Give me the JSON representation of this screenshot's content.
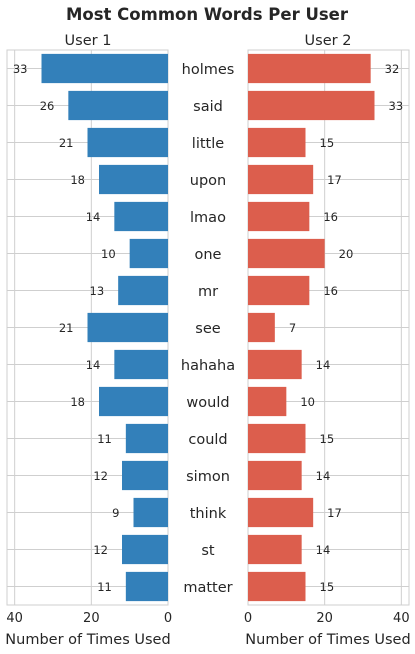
{
  "chart_data": {
    "type": "bar",
    "title": "Most Common Words Per User",
    "categories": [
      "holmes",
      "said",
      "little",
      "upon",
      "lmao",
      "one",
      "mr",
      "see",
      "hahaha",
      "would",
      "could",
      "simon",
      "think",
      "st",
      "matter"
    ],
    "series": [
      {
        "name": "User 1",
        "values": [
          33,
          26,
          21,
          18,
          14,
          10,
          13,
          21,
          14,
          18,
          11,
          12,
          9,
          12,
          11
        ],
        "color": "#3380BA"
      },
      {
        "name": "User 2",
        "values": [
          32,
          33,
          15,
          17,
          16,
          20,
          16,
          7,
          14,
          10,
          15,
          14,
          17,
          14,
          15
        ],
        "color": "#DC5E4D"
      }
    ],
    "xlabel": "Number of Times Used",
    "xlim": [
      0,
      42
    ],
    "xticks": [
      0,
      20,
      40
    ],
    "grid": true,
    "orientation": "horizontal"
  }
}
